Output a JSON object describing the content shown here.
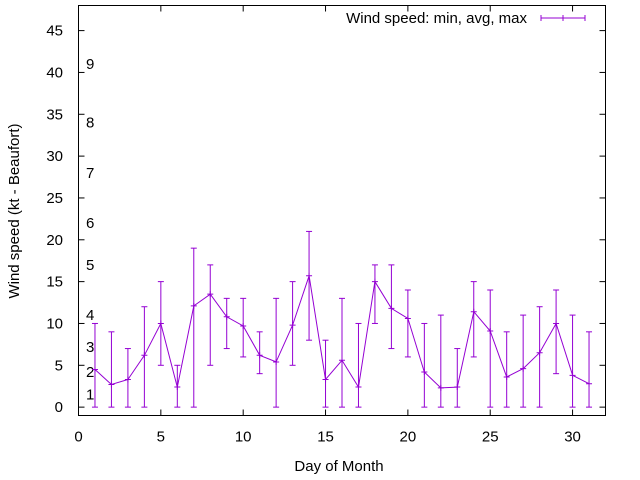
{
  "chart_data": {
    "type": "line",
    "title": "",
    "xlabel": "Day of Month",
    "ylabel": "Wind speed (kt - Beaufort)",
    "xlim": [
      0,
      32
    ],
    "ylim": [
      -1,
      48
    ],
    "x_ticks": [
      0,
      5,
      10,
      15,
      20,
      25,
      30
    ],
    "y_ticks": [
      0,
      5,
      10,
      15,
      20,
      25,
      30,
      35,
      40,
      45
    ],
    "beaufort_labels": [
      {
        "label": "1",
        "value": 1.5
      },
      {
        "label": "2",
        "value": 4.2
      },
      {
        "label": "3",
        "value": 7.2
      },
      {
        "label": "4",
        "value": 11
      },
      {
        "label": "5",
        "value": 17
      },
      {
        "label": "6",
        "value": 22
      },
      {
        "label": "7",
        "value": 28
      },
      {
        "label": "8",
        "value": 34
      },
      {
        "label": "9",
        "value": 41
      }
    ],
    "grid": false,
    "legend_position": "top-right",
    "series": [
      {
        "name": "Wind speed: min, avg, max",
        "color": "#9400d3",
        "x": [
          1,
          2,
          3,
          4,
          5,
          6,
          7,
          8,
          9,
          10,
          11,
          12,
          13,
          14,
          15,
          16,
          17,
          18,
          19,
          20,
          21,
          22,
          23,
          24,
          25,
          26,
          27,
          28,
          29,
          30,
          31
        ],
        "avg": [
          4.5,
          2.7,
          3.3,
          6.2,
          10,
          2.4,
          12.1,
          13.5,
          10.8,
          9.7,
          6.2,
          5.4,
          9.8,
          15.7,
          3.3,
          5.6,
          2.4,
          15,
          11.8,
          10.6,
          4.2,
          2.3,
          2.4,
          11.4,
          9.1,
          3.6,
          4.6,
          6.5,
          10,
          3.8,
          2.8
        ],
        "min": [
          0,
          0,
          0,
          0,
          5,
          0,
          0,
          5,
          7,
          6,
          4,
          0,
          5,
          8,
          0,
          0,
          0,
          10,
          7,
          6,
          0,
          0,
          0,
          6,
          0,
          0,
          0,
          0,
          4,
          0,
          0
        ],
        "max": [
          10,
          9,
          7,
          12,
          15,
          5,
          19,
          17,
          13,
          13,
          9,
          13,
          15,
          21,
          8,
          13,
          10,
          17,
          17,
          14,
          10,
          11,
          7,
          15,
          14,
          9,
          11,
          12,
          14,
          11,
          9
        ]
      }
    ]
  }
}
